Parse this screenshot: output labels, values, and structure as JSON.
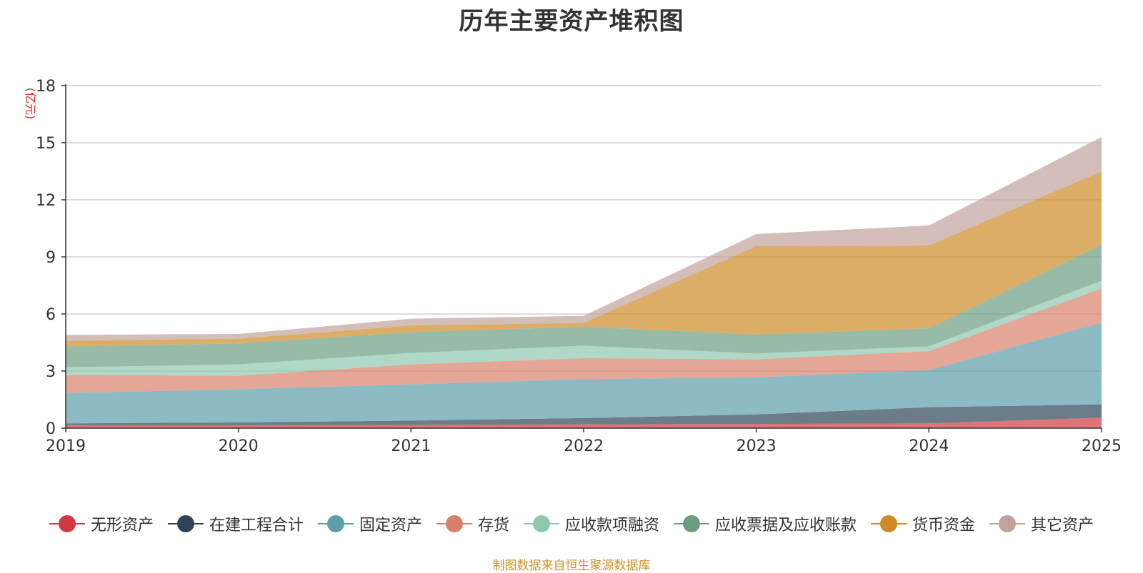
{
  "chart_data": {
    "type": "area",
    "stacked": true,
    "title": "历年主要资产堆积图",
    "ylabel": "(亿元)",
    "xlabel": "",
    "x": [
      "2019",
      "2020",
      "2021",
      "2022",
      "2023",
      "2024",
      "2025"
    ],
    "ylim": [
      0,
      18
    ],
    "yticks": [
      0,
      3,
      6,
      9,
      12,
      15,
      18
    ],
    "grid": true,
    "legend_position": "bottom",
    "series": [
      {
        "name": "无形资产",
        "color": "#d0393f",
        "values": [
          0.15,
          0.15,
          0.17,
          0.2,
          0.22,
          0.25,
          0.55
        ]
      },
      {
        "name": "在建工程合计",
        "color": "#2e4456",
        "values": [
          0.1,
          0.15,
          0.23,
          0.33,
          0.5,
          0.85,
          0.7
        ]
      },
      {
        "name": "固定资产",
        "color": "#5d9ea9",
        "values": [
          1.6,
          1.75,
          1.9,
          2.05,
          1.95,
          1.95,
          4.3
        ]
      },
      {
        "name": "存货",
        "color": "#d9806a",
        "values": [
          0.95,
          0.7,
          1.05,
          1.1,
          0.95,
          1.0,
          1.8
        ]
      },
      {
        "name": "应收款项融资",
        "color": "#8ec8ae",
        "values": [
          0.4,
          0.6,
          0.6,
          0.65,
          0.3,
          0.25,
          0.4
        ]
      },
      {
        "name": "应收票据及应收账款",
        "color": "#6b9e80",
        "values": [
          1.1,
          1.1,
          1.1,
          1.0,
          1.0,
          0.95,
          1.9
        ]
      },
      {
        "name": "货币资金",
        "color": "#cd8a27",
        "values": [
          0.3,
          0.25,
          0.35,
          0.2,
          4.65,
          4.35,
          3.85
        ]
      },
      {
        "name": "其它资产",
        "color": "#c1a29b",
        "values": [
          0.3,
          0.25,
          0.35,
          0.37,
          0.63,
          1.05,
          1.8
        ]
      }
    ]
  },
  "source_note": "制图数据来自恒生聚源数据库"
}
